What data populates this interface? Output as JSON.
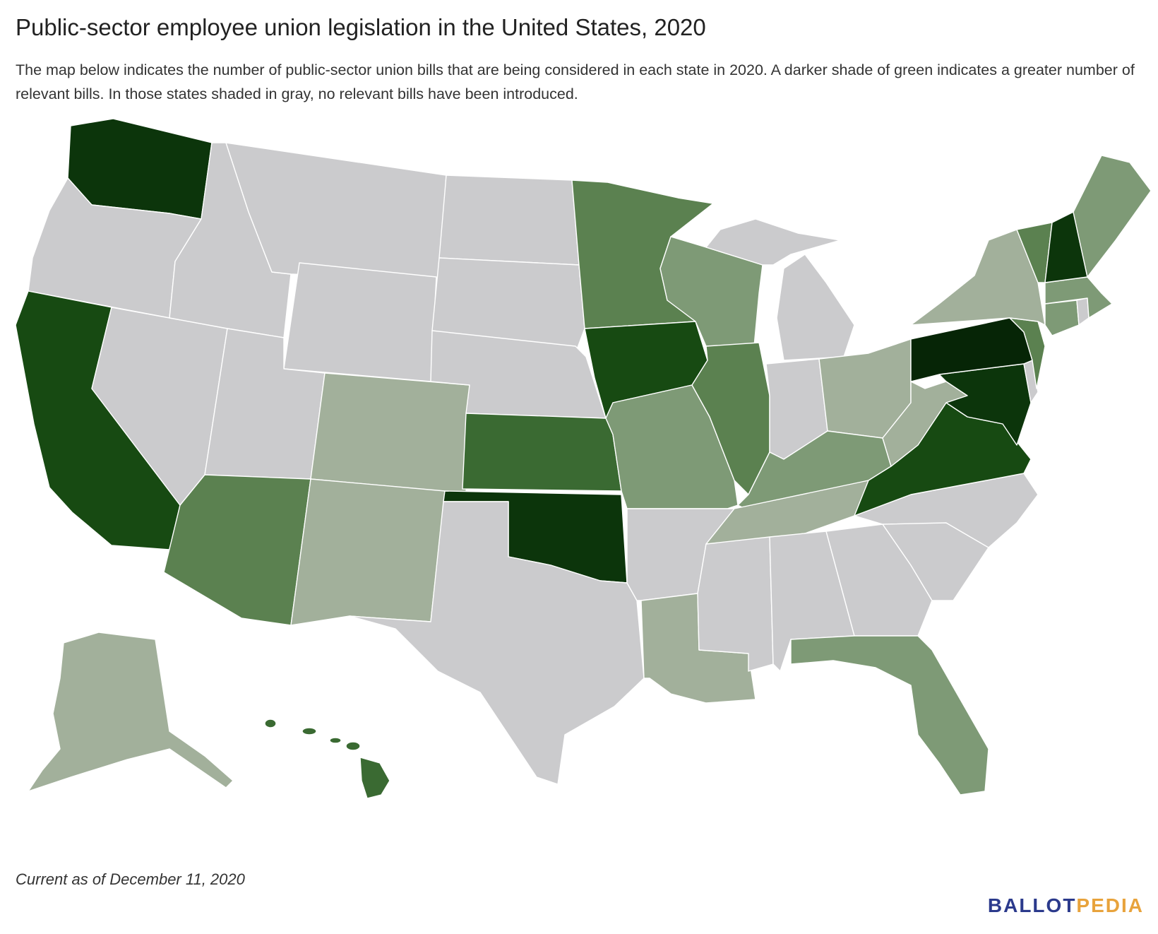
{
  "title": "Public-sector employee union legislation in the United States, 2020",
  "subtitle": "The map below indicates the number of public-sector union bills that are being considered in each state in 2020. A darker shade of green indicates a greater number of relevant bills. In those states shaded in gray, no relevant bills have been introduced.",
  "footer": "Current as of December 11, 2020",
  "brand": {
    "part1": "BALLOT",
    "part2": "PEDIA"
  },
  "colors": {
    "none": "#cbcbcd",
    "level1": "#a2b09b",
    "level2": "#7e9a76",
    "level3": "#5b8150",
    "level4": "#3a6a32",
    "level5": "#174a12",
    "level6": "#0c350b",
    "level7": "#062506"
  },
  "states": [
    {
      "name": "Washington",
      "level": "level6"
    },
    {
      "name": "Oregon",
      "level": "none"
    },
    {
      "name": "California",
      "level": "level5"
    },
    {
      "name": "Nevada",
      "level": "none"
    },
    {
      "name": "Idaho",
      "level": "none"
    },
    {
      "name": "Montana",
      "level": "none"
    },
    {
      "name": "Wyoming",
      "level": "none"
    },
    {
      "name": "Utah",
      "level": "none"
    },
    {
      "name": "Arizona",
      "level": "level3"
    },
    {
      "name": "Colorado",
      "level": "level1"
    },
    {
      "name": "New Mexico",
      "level": "level1"
    },
    {
      "name": "North Dakota",
      "level": "none"
    },
    {
      "name": "South Dakota",
      "level": "none"
    },
    {
      "name": "Nebraska",
      "level": "none"
    },
    {
      "name": "Kansas",
      "level": "level4"
    },
    {
      "name": "Oklahoma",
      "level": "level6"
    },
    {
      "name": "Texas",
      "level": "none"
    },
    {
      "name": "Minnesota",
      "level": "level3"
    },
    {
      "name": "Iowa",
      "level": "level5"
    },
    {
      "name": "Missouri",
      "level": "level2"
    },
    {
      "name": "Arkansas",
      "level": "none"
    },
    {
      "name": "Louisiana",
      "level": "level1"
    },
    {
      "name": "Wisconsin",
      "level": "level2"
    },
    {
      "name": "Illinois",
      "level": "level3"
    },
    {
      "name": "Michigan",
      "level": "none"
    },
    {
      "name": "Indiana",
      "level": "none"
    },
    {
      "name": "Ohio",
      "level": "level1"
    },
    {
      "name": "Kentucky",
      "level": "level2"
    },
    {
      "name": "Tennessee",
      "level": "level1"
    },
    {
      "name": "Mississippi",
      "level": "none"
    },
    {
      "name": "Alabama",
      "level": "none"
    },
    {
      "name": "Georgia",
      "level": "none"
    },
    {
      "name": "Florida",
      "level": "level2"
    },
    {
      "name": "South Carolina",
      "level": "none"
    },
    {
      "name": "North Carolina",
      "level": "none"
    },
    {
      "name": "Virginia",
      "level": "level5"
    },
    {
      "name": "West Virginia",
      "level": "level1"
    },
    {
      "name": "Maryland",
      "level": "level6"
    },
    {
      "name": "Delaware",
      "level": "none"
    },
    {
      "name": "Pennsylvania",
      "level": "level7"
    },
    {
      "name": "New Jersey",
      "level": "level3"
    },
    {
      "name": "New York",
      "level": "level1"
    },
    {
      "name": "Connecticut",
      "level": "level2"
    },
    {
      "name": "Rhode Island",
      "level": "none"
    },
    {
      "name": "Massachusetts",
      "level": "level2"
    },
    {
      "name": "Vermont",
      "level": "level3"
    },
    {
      "name": "New Hampshire",
      "level": "level6"
    },
    {
      "name": "Maine",
      "level": "level2"
    },
    {
      "name": "Alaska",
      "level": "level1"
    },
    {
      "name": "Hawaii",
      "level": "level4"
    }
  ]
}
